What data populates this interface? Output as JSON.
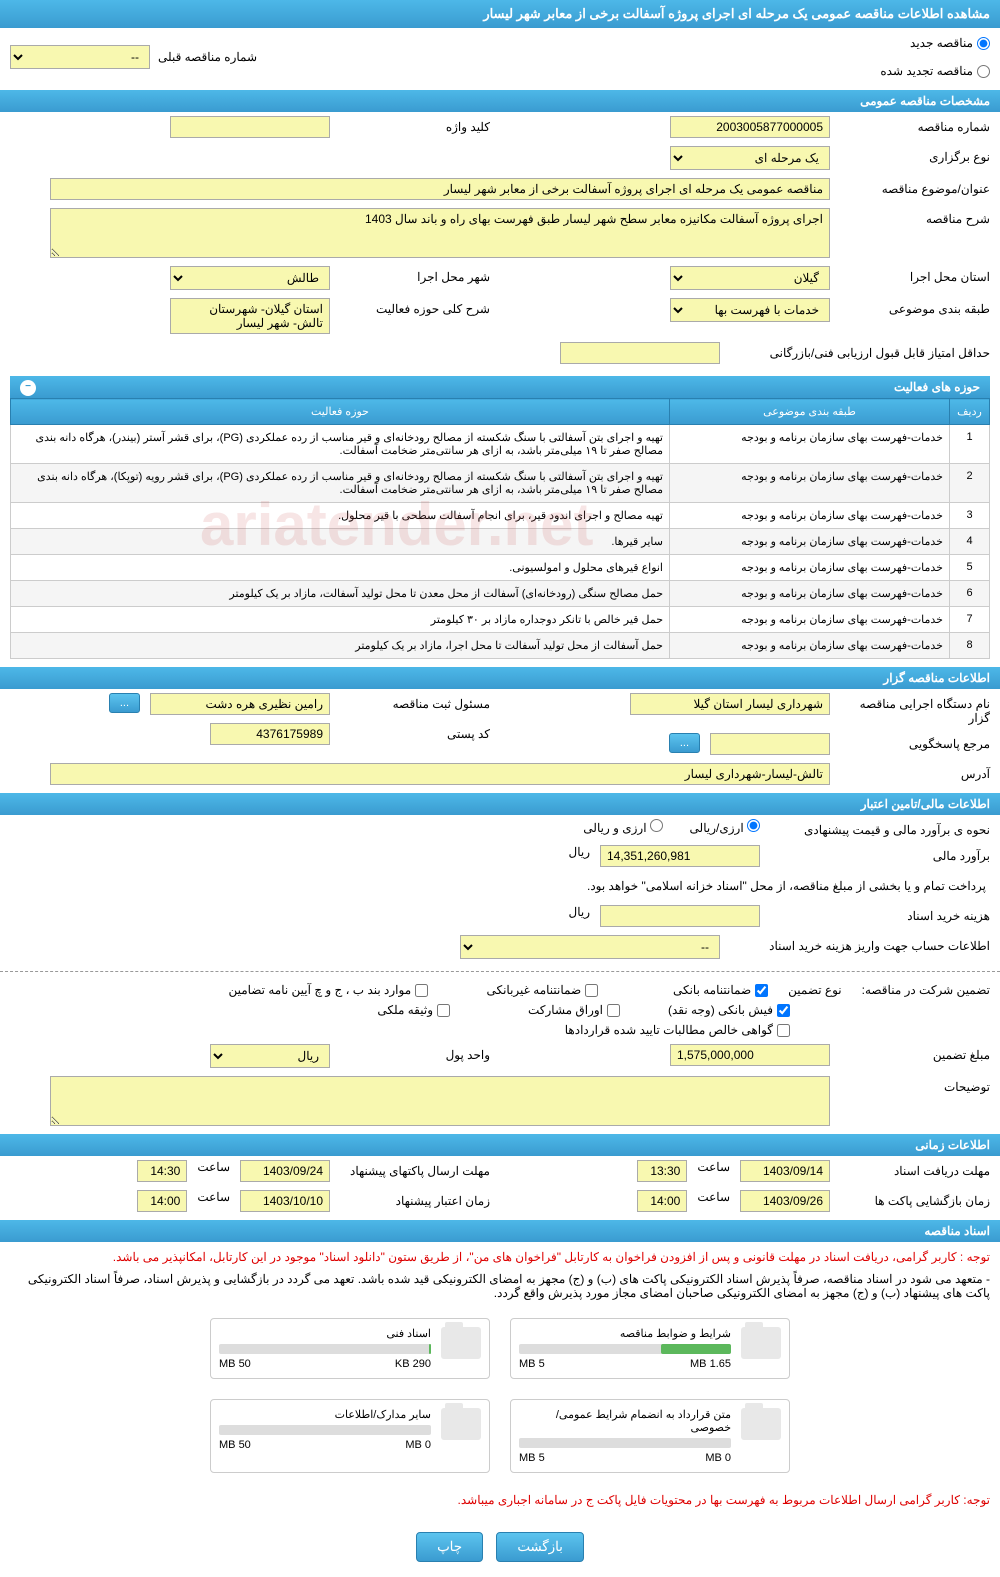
{
  "header": {
    "title": "مشاهده اطلاعات مناقصه عمومی یک مرحله ای اجرای پروژه آسفالت برخی از معابر شهر لیسار"
  },
  "tender_type": {
    "new_label": "مناقصه جدید",
    "renewed_label": "مناقصه تجدید شده",
    "prev_num_label": "شماره مناقصه قبلی",
    "prev_num_value": "--"
  },
  "sections": {
    "general": "مشخصات مناقصه عمومی",
    "activities": "حوزه های فعالیت",
    "tenderer": "اطلاعات مناقصه گزار",
    "financial": "اطلاعات مالی/تامین اعتبار",
    "timing": "اطلاعات زمانی",
    "docs": "اسناد مناقصه"
  },
  "general": {
    "tender_num_label": "شماره مناقصه",
    "tender_num": "2003005877000005",
    "type_label": "نوع برگزاری",
    "type": "یک مرحله ای",
    "keyword_label": "کلید واژه",
    "keyword": "",
    "title_label": "عنوان/موضوع مناقصه",
    "title": "مناقصه عمومی یک مرحله ای اجرای پروژه آسفالت برخی از معابر شهر لیسار",
    "desc_label": "شرح مناقصه",
    "desc": "اجرای پروژه آسفالت مکانیزه معابر سطح شهر لیسار طبق فهرست بهای راه و باند سال 1403",
    "province_label": "استان محل اجرا",
    "province": "گیلان",
    "city_label": "شهر محل اجرا",
    "city": "طالش",
    "category_label": "طبقه بندی موضوعی",
    "category": "خدمات با فهرست بها",
    "scope_label": "شرح کلی حوزه فعالیت",
    "scope": "استان گیلان- شهرستان تالش- شهر لیسار",
    "min_score_label": "حداقل امتیاز قابل قبول ارزیابی فنی/بازرگانی",
    "min_score": ""
  },
  "activity_table": {
    "col_row": "ردیف",
    "col_category": "طبقه بندی موضوعی",
    "col_activity": "حوزه فعالیت",
    "rows": [
      {
        "n": "1",
        "cat": "خدمات-فهرست بهای سازمان برنامه و بودجه",
        "act": "تهیه و اجرای بتن آسفالتی با سنگ شکسته از مصالح رودخانه‌ای و قیر مناسب از رده عملکردی (PG)، برای قشر آستر (بیندر)، هرگاه دانه بندی مصالح صفر تا ۱۹ میلی‌متر باشد، به ازای هر سانتی‌متر ضخامت آسفالت."
      },
      {
        "n": "2",
        "cat": "خدمات-فهرست بهای سازمان برنامه و بودجه",
        "act": "تهیه و اجرای بتن آسفالتی با سنگ شکسته از مصالح رودخانه‌ای و قیر مناسب از رده عملکردی (PG)، برای قشر رویه (توپکا)، هرگاه دانه بندی مصالح صفر تا ۱۹ میلی‌متر باشد، به ازای هر سانتی‌متر ضخامت آسفالت."
      },
      {
        "n": "3",
        "cat": "خدمات-فهرست بهای سازمان برنامه و بودجه",
        "act": "تهیه مصالح و اجرای اندود قیر، برای انجام آسفالت سطحی با قیر محلول."
      },
      {
        "n": "4",
        "cat": "خدمات-فهرست بهای سازمان برنامه و بودجه",
        "act": "سایر قیرها."
      },
      {
        "n": "5",
        "cat": "خدمات-فهرست بهای سازمان برنامه و بودجه",
        "act": "انواع قیرهای محلول و امولسیونی."
      },
      {
        "n": "6",
        "cat": "خدمات-فهرست بهای سازمان برنامه و بودجه",
        "act": "حمل مصالح سنگی (رودخانه‌ای) آسفالت از محل معدن تا محل تولید آسفالت، مازاد بر یک کیلومتر"
      },
      {
        "n": "7",
        "cat": "خدمات-فهرست بهای سازمان برنامه و بودجه",
        "act": "حمل قیر خالص با تانکر دوجداره مازاد بر ۳۰ کیلومتر"
      },
      {
        "n": "8",
        "cat": "خدمات-فهرست بهای سازمان برنامه و بودجه",
        "act": "حمل آسفالت از محل تولید آسفالت تا محل اجرا، مازاد بر یک کیلومتر"
      }
    ]
  },
  "tenderer": {
    "org_label": "نام دستگاه اجرایی مناقصه گزار",
    "org": "شهرداری لیسار استان گیلا",
    "reg_official_label": "مسئول ثبت مناقصه",
    "reg_official": "رامین نظیری هره دشت",
    "contact_label": "مرجع پاسخگویی",
    "contact": "",
    "postal_label": "کد پستی",
    "postal": "4376175989",
    "address_label": "آدرس",
    "address": "تالش-لیسار-شهرداری لیسار"
  },
  "financial": {
    "method_label": "نحوه ی برآورد مالی و قیمت پیشنهادی",
    "riyali": "ارزی/ریالی",
    "arzi": "ارزی و ریالی",
    "estimate_label": "برآورد مالی",
    "estimate": "14,351,260,981",
    "rial": "ریال",
    "note": "پرداخت تمام و یا بخشی از مبلغ مناقصه، از محل \"اسناد خزانه اسلامی\" خواهد بود.",
    "doc_cost_label": "هزینه خرید اسناد",
    "doc_cost": "",
    "account_label": "اطلاعات حساب جهت واریز هزینه خرید اسناد",
    "account": "--",
    "guarantee_label": "تضمین شرکت در مناقصه:",
    "guarantee_type_label": "نوع تضمین",
    "cb_bank": "ضمانتنامه بانکی",
    "cb_nonbank": "ضمانتنامه غیربانکی",
    "cb_items": "موارد بند ب ، ج و چ آیین نامه تضامین",
    "cb_cash": "فیش بانکی (وجه نقد)",
    "cb_bonds": "اوراق مشارکت",
    "cb_property": "وثیقه ملکی",
    "cb_cert": "گواهی خالص مطالبات تایید شده قراردادها",
    "guarantee_amount_label": "مبلغ تضمین",
    "guarantee_amount": "1,575,000,000",
    "currency_label": "واحد پول",
    "currency": "ریال",
    "notes_label": "توضیحات",
    "notes": ""
  },
  "timing": {
    "doc_receipt_label": "مهلت دریافت اسناد",
    "doc_receipt_date": "1403/09/14",
    "doc_receipt_time": "13:30",
    "packet_send_label": "مهلت ارسال پاکتهای پیشنهاد",
    "packet_send_date": "1403/09/24",
    "packet_send_time": "14:30",
    "packet_open_label": "زمان بازگشایی پاکت ها",
    "packet_open_date": "1403/09/26",
    "packet_open_time": "14:00",
    "validity_label": "زمان اعتبار پیشنهاد",
    "validity_date": "1403/10/10",
    "validity_time": "14:00",
    "time_label": "ساعت"
  },
  "docs": {
    "notice1": "توجه : کاربر گرامی، دریافت اسناد در مهلت قانونی و پس از افزودن فراخوان به کارتابل \"فراخوان های من\"، از طریق ستون \"دانلود اسناد\" موجود در این کارتابل، امکانپذیر می باشد.",
    "notice2": "- متعهد می شود در اسناد مناقصه، صرفاً پذیرش اسناد الکترونیکی پاکت های (ب) و (ج) مجهز به امضای الکترونیکی قید شده باشد. تعهد می گردد در بازگشایی و پذیرش اسناد، صرفاً اسناد الکترونیکی پاکت های پیشنهاد (ب) و (ج) مجهز به امضای الکترونیکی صاحبان امضای مجاز مورد پذیرش واقع گردد.",
    "file1_title": "شرایط و ضوابط مناقصه",
    "file1_size": "1.65 MB",
    "file1_limit": "5 MB",
    "file1_pct": 33,
    "file2_title": "اسناد فنی",
    "file2_size": "290 KB",
    "file2_limit": "50 MB",
    "file2_pct": 1,
    "file3_title": "متن قرارداد به انضمام شرایط عمومی/خصوصی",
    "file3_size": "0 MB",
    "file3_limit": "5 MB",
    "file3_pct": 0,
    "file4_title": "سایر مدارک/اطلاعات",
    "file4_size": "0 MB",
    "file4_limit": "50 MB",
    "file4_pct": 0,
    "bottom_notice": "توجه: کاربر گرامی ارسال اطلاعات مربوط به فهرست بها در محتویات فایل پاکت ج در سامانه اجباری میباشد."
  },
  "buttons": {
    "back": "بازگشت",
    "print": "چاپ",
    "dots": "..."
  },
  "watermark": "ariatender.net"
}
